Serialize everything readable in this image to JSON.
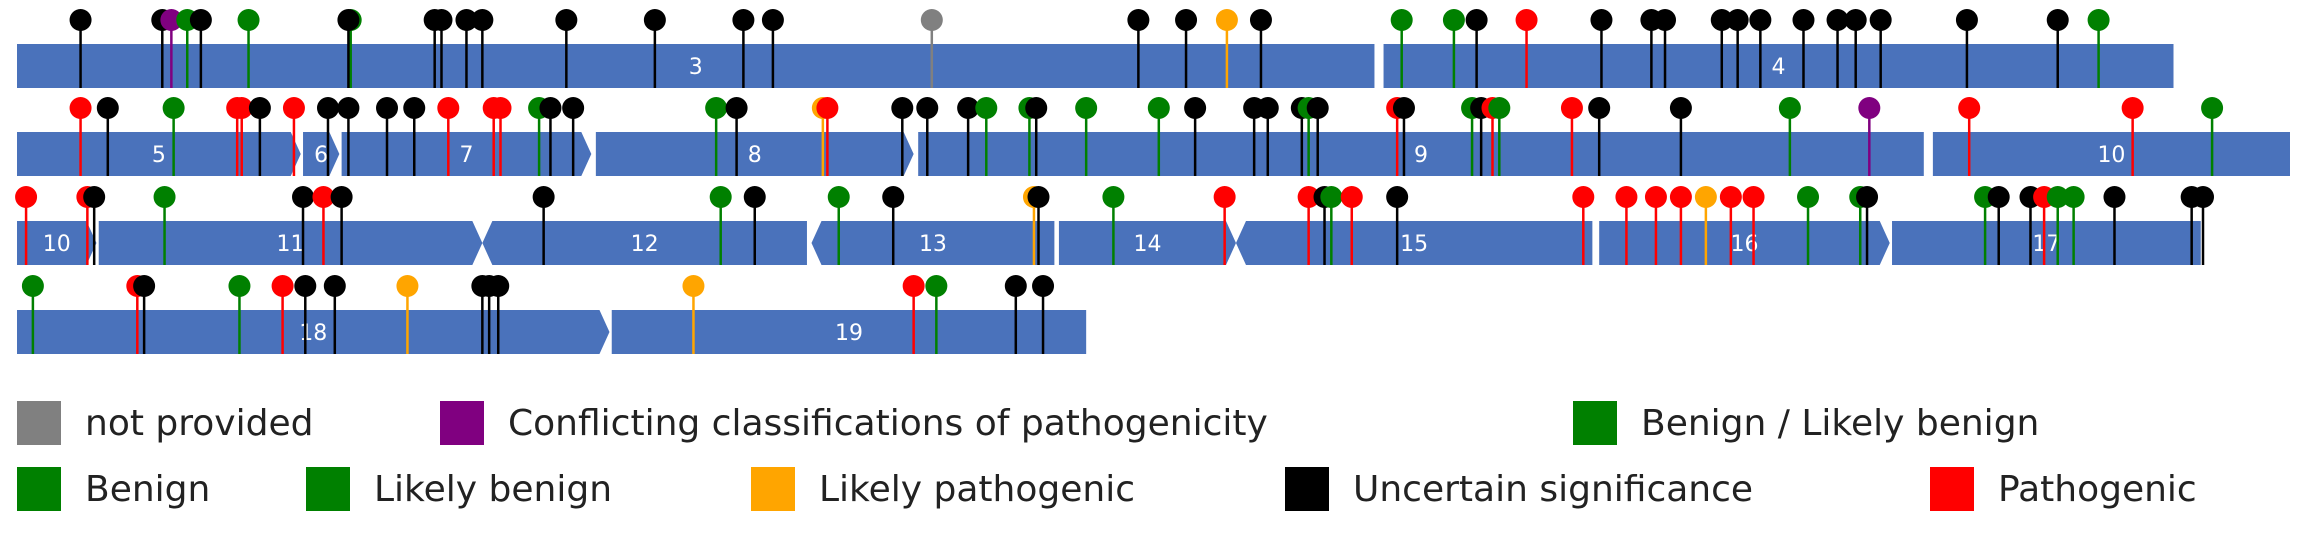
{
  "colors": {
    "track": "#4a72bb",
    "not_provided": "#808080",
    "conflicting": "#800080",
    "benign": "#008000",
    "likely_pathogenic": "#ffa500",
    "uncertain": "#000000",
    "pathogenic": "#ff0000"
  },
  "exons": [
    {
      "label": "3",
      "row": 0,
      "start": 0.0,
      "end": 0.598,
      "arrow_left": false,
      "arrow_right": false
    },
    {
      "label": "4",
      "row": 0,
      "start": 0.602,
      "end": 0.95,
      "arrow_left": false,
      "arrow_right": false
    },
    {
      "label": "5",
      "row": 1,
      "start": 0.0,
      "end": 0.125,
      "arrow_left": false,
      "arrow_right": true
    },
    {
      "label": "6",
      "row": 1,
      "start": 0.126,
      "end": 0.142,
      "arrow_left": false,
      "arrow_right": true
    },
    {
      "label": "7",
      "row": 1,
      "start": 0.143,
      "end": 0.253,
      "arrow_left": false,
      "arrow_right": true
    },
    {
      "label": "8",
      "row": 1,
      "start": 0.255,
      "end": 0.395,
      "arrow_left": false,
      "arrow_right": true
    },
    {
      "label": "9",
      "row": 1,
      "start": 0.397,
      "end": 0.84,
      "arrow_left": false,
      "arrow_right": false
    },
    {
      "label": "10",
      "row": 1,
      "start": 0.844,
      "end": 1.005,
      "arrow_left": false,
      "arrow_right": false
    },
    {
      "label": "10",
      "row": 2,
      "start": 0.0,
      "end": 0.035,
      "arrow_left": false,
      "arrow_right": true
    },
    {
      "label": "11",
      "row": 2,
      "start": 0.036,
      "end": 0.205,
      "arrow_left": false,
      "arrow_right": true
    },
    {
      "label": "12",
      "row": 2,
      "start": 0.205,
      "end": 0.348,
      "arrow_left": true,
      "arrow_right": false
    },
    {
      "label": "13",
      "row": 2,
      "start": 0.35,
      "end": 0.457,
      "arrow_left": true,
      "arrow_right": false
    },
    {
      "label": "14",
      "row": 2,
      "start": 0.459,
      "end": 0.537,
      "arrow_left": false,
      "arrow_right": true
    },
    {
      "label": "15",
      "row": 2,
      "start": 0.537,
      "end": 0.694,
      "arrow_left": true,
      "arrow_right": false
    },
    {
      "label": "16",
      "row": 2,
      "start": 0.697,
      "end": 0.825,
      "arrow_left": false,
      "arrow_right": true
    },
    {
      "label": "17",
      "row": 2,
      "start": 0.826,
      "end": 0.962,
      "arrow_left": false,
      "arrow_right": false
    },
    {
      "label": "18",
      "row": 3,
      "start": 0.0,
      "end": 0.261,
      "arrow_left": false,
      "arrow_right": true
    },
    {
      "label": "19",
      "row": 3,
      "start": 0.262,
      "end": 0.471,
      "arrow_left": false,
      "arrow_right": false
    }
  ],
  "variants": [
    {
      "row": 0,
      "pos": 0.028,
      "cls": "uncertain"
    },
    {
      "row": 0,
      "pos": 0.064,
      "cls": "uncertain"
    },
    {
      "row": 0,
      "pos": 0.068,
      "cls": "conflicting"
    },
    {
      "row": 0,
      "pos": 0.075,
      "cls": "benign"
    },
    {
      "row": 0,
      "pos": 0.081,
      "cls": "uncertain"
    },
    {
      "row": 0,
      "pos": 0.102,
      "cls": "benign"
    },
    {
      "row": 0,
      "pos": 0.147,
      "cls": "benign"
    },
    {
      "row": 0,
      "pos": 0.146,
      "cls": "uncertain"
    },
    {
      "row": 0,
      "pos": 0.184,
      "cls": "uncertain"
    },
    {
      "row": 0,
      "pos": 0.187,
      "cls": "uncertain"
    },
    {
      "row": 0,
      "pos": 0.198,
      "cls": "uncertain"
    },
    {
      "row": 0,
      "pos": 0.205,
      "cls": "uncertain"
    },
    {
      "row": 0,
      "pos": 0.242,
      "cls": "uncertain"
    },
    {
      "row": 0,
      "pos": 0.281,
      "cls": "uncertain"
    },
    {
      "row": 0,
      "pos": 0.32,
      "cls": "uncertain"
    },
    {
      "row": 0,
      "pos": 0.333,
      "cls": "uncertain"
    },
    {
      "row": 0,
      "pos": 0.403,
      "cls": "not_provided"
    },
    {
      "row": 0,
      "pos": 0.494,
      "cls": "uncertain"
    },
    {
      "row": 0,
      "pos": 0.515,
      "cls": "uncertain"
    },
    {
      "row": 0,
      "pos": 0.533,
      "cls": "likely_pathogenic"
    },
    {
      "row": 0,
      "pos": 0.548,
      "cls": "uncertain"
    },
    {
      "row": 0,
      "pos": 0.61,
      "cls": "benign"
    },
    {
      "row": 0,
      "pos": 0.633,
      "cls": "benign"
    },
    {
      "row": 0,
      "pos": 0.643,
      "cls": "uncertain"
    },
    {
      "row": 0,
      "pos": 0.665,
      "cls": "pathogenic"
    },
    {
      "row": 0,
      "pos": 0.698,
      "cls": "uncertain"
    },
    {
      "row": 0,
      "pos": 0.72,
      "cls": "uncertain"
    },
    {
      "row": 0,
      "pos": 0.726,
      "cls": "uncertain"
    },
    {
      "row": 0,
      "pos": 0.751,
      "cls": "uncertain"
    },
    {
      "row": 0,
      "pos": 0.758,
      "cls": "uncertain"
    },
    {
      "row": 0,
      "pos": 0.768,
      "cls": "uncertain"
    },
    {
      "row": 0,
      "pos": 0.787,
      "cls": "uncertain"
    },
    {
      "row": 0,
      "pos": 0.802,
      "cls": "uncertain"
    },
    {
      "row": 0,
      "pos": 0.81,
      "cls": "uncertain"
    },
    {
      "row": 0,
      "pos": 0.821,
      "cls": "uncertain"
    },
    {
      "row": 0,
      "pos": 0.859,
      "cls": "uncertain"
    },
    {
      "row": 0,
      "pos": 0.899,
      "cls": "uncertain"
    },
    {
      "row": 0,
      "pos": 0.917,
      "cls": "benign"
    },
    {
      "row": 1,
      "pos": 0.028,
      "cls": "pathogenic"
    },
    {
      "row": 1,
      "pos": 0.04,
      "cls": "uncertain"
    },
    {
      "row": 1,
      "pos": 0.069,
      "cls": "benign"
    },
    {
      "row": 1,
      "pos": 0.097,
      "cls": "pathogenic"
    },
    {
      "row": 1,
      "pos": 0.099,
      "cls": "pathogenic"
    },
    {
      "row": 1,
      "pos": 0.107,
      "cls": "uncertain"
    },
    {
      "row": 1,
      "pos": 0.122,
      "cls": "pathogenic"
    },
    {
      "row": 1,
      "pos": 0.137,
      "cls": "uncertain"
    },
    {
      "row": 1,
      "pos": 0.146,
      "cls": "uncertain"
    },
    {
      "row": 1,
      "pos": 0.163,
      "cls": "uncertain"
    },
    {
      "row": 1,
      "pos": 0.175,
      "cls": "uncertain"
    },
    {
      "row": 1,
      "pos": 0.19,
      "cls": "pathogenic"
    },
    {
      "row": 1,
      "pos": 0.21,
      "cls": "pathogenic"
    },
    {
      "row": 1,
      "pos": 0.213,
      "cls": "pathogenic"
    },
    {
      "row": 1,
      "pos": 0.23,
      "cls": "benign"
    },
    {
      "row": 1,
      "pos": 0.235,
      "cls": "uncertain"
    },
    {
      "row": 1,
      "pos": 0.245,
      "cls": "uncertain"
    },
    {
      "row": 1,
      "pos": 0.308,
      "cls": "benign"
    },
    {
      "row": 1,
      "pos": 0.317,
      "cls": "uncertain"
    },
    {
      "row": 1,
      "pos": 0.355,
      "cls": "likely_pathogenic"
    },
    {
      "row": 1,
      "pos": 0.357,
      "cls": "pathogenic"
    },
    {
      "row": 1,
      "pos": 0.39,
      "cls": "uncertain"
    },
    {
      "row": 1,
      "pos": 0.401,
      "cls": "uncertain"
    },
    {
      "row": 1,
      "pos": 0.419,
      "cls": "uncertain"
    },
    {
      "row": 1,
      "pos": 0.427,
      "cls": "benign"
    },
    {
      "row": 1,
      "pos": 0.446,
      "cls": "benign"
    },
    {
      "row": 1,
      "pos": 0.449,
      "cls": "uncertain"
    },
    {
      "row": 1,
      "pos": 0.471,
      "cls": "benign"
    },
    {
      "row": 1,
      "pos": 0.503,
      "cls": "benign"
    },
    {
      "row": 1,
      "pos": 0.519,
      "cls": "uncertain"
    },
    {
      "row": 1,
      "pos": 0.545,
      "cls": "uncertain"
    },
    {
      "row": 1,
      "pos": 0.551,
      "cls": "uncertain"
    },
    {
      "row": 1,
      "pos": 0.566,
      "cls": "uncertain"
    },
    {
      "row": 1,
      "pos": 0.569,
      "cls": "benign"
    },
    {
      "row": 1,
      "pos": 0.573,
      "cls": "uncertain"
    },
    {
      "row": 1,
      "pos": 0.608,
      "cls": "pathogenic"
    },
    {
      "row": 1,
      "pos": 0.611,
      "cls": "uncertain"
    },
    {
      "row": 1,
      "pos": 0.641,
      "cls": "benign"
    },
    {
      "row": 1,
      "pos": 0.645,
      "cls": "uncertain"
    },
    {
      "row": 1,
      "pos": 0.65,
      "cls": "pathogenic"
    },
    {
      "row": 1,
      "pos": 0.653,
      "cls": "benign"
    },
    {
      "row": 1,
      "pos": 0.685,
      "cls": "pathogenic"
    },
    {
      "row": 1,
      "pos": 0.697,
      "cls": "uncertain"
    },
    {
      "row": 1,
      "pos": 0.733,
      "cls": "uncertain"
    },
    {
      "row": 1,
      "pos": 0.781,
      "cls": "benign"
    },
    {
      "row": 1,
      "pos": 0.816,
      "cls": "conflicting"
    },
    {
      "row": 1,
      "pos": 0.86,
      "cls": "pathogenic"
    },
    {
      "row": 1,
      "pos": 0.932,
      "cls": "pathogenic"
    },
    {
      "row": 1,
      "pos": 0.967,
      "cls": "benign"
    },
    {
      "row": 2,
      "pos": 0.004,
      "cls": "pathogenic"
    },
    {
      "row": 2,
      "pos": 0.031,
      "cls": "pathogenic"
    },
    {
      "row": 2,
      "pos": 0.034,
      "cls": "uncertain"
    },
    {
      "row": 2,
      "pos": 0.065,
      "cls": "benign"
    },
    {
      "row": 2,
      "pos": 0.126,
      "cls": "uncertain"
    },
    {
      "row": 2,
      "pos": 0.135,
      "cls": "pathogenic"
    },
    {
      "row": 2,
      "pos": 0.143,
      "cls": "uncertain"
    },
    {
      "row": 2,
      "pos": 0.232,
      "cls": "uncertain"
    },
    {
      "row": 2,
      "pos": 0.31,
      "cls": "benign"
    },
    {
      "row": 2,
      "pos": 0.325,
      "cls": "uncertain"
    },
    {
      "row": 2,
      "pos": 0.362,
      "cls": "benign"
    },
    {
      "row": 2,
      "pos": 0.386,
      "cls": "uncertain"
    },
    {
      "row": 2,
      "pos": 0.448,
      "cls": "likely_pathogenic"
    },
    {
      "row": 2,
      "pos": 0.45,
      "cls": "uncertain"
    },
    {
      "row": 2,
      "pos": 0.483,
      "cls": "benign"
    },
    {
      "row": 2,
      "pos": 0.532,
      "cls": "pathogenic"
    },
    {
      "row": 2,
      "pos": 0.569,
      "cls": "pathogenic"
    },
    {
      "row": 2,
      "pos": 0.576,
      "cls": "uncertain"
    },
    {
      "row": 2,
      "pos": 0.579,
      "cls": "benign"
    },
    {
      "row": 2,
      "pos": 0.588,
      "cls": "pathogenic"
    },
    {
      "row": 2,
      "pos": 0.608,
      "cls": "uncertain"
    },
    {
      "row": 2,
      "pos": 0.69,
      "cls": "pathogenic"
    },
    {
      "row": 2,
      "pos": 0.709,
      "cls": "pathogenic"
    },
    {
      "row": 2,
      "pos": 0.722,
      "cls": "pathogenic"
    },
    {
      "row": 2,
      "pos": 0.733,
      "cls": "pathogenic"
    },
    {
      "row": 2,
      "pos": 0.744,
      "cls": "likely_pathogenic"
    },
    {
      "row": 2,
      "pos": 0.755,
      "cls": "pathogenic"
    },
    {
      "row": 2,
      "pos": 0.765,
      "cls": "pathogenic"
    },
    {
      "row": 2,
      "pos": 0.789,
      "cls": "benign"
    },
    {
      "row": 2,
      "pos": 0.812,
      "cls": "benign"
    },
    {
      "row": 2,
      "pos": 0.815,
      "cls": "uncertain"
    },
    {
      "row": 2,
      "pos": 0.867,
      "cls": "benign"
    },
    {
      "row": 2,
      "pos": 0.873,
      "cls": "uncertain"
    },
    {
      "row": 2,
      "pos": 0.887,
      "cls": "uncertain"
    },
    {
      "row": 2,
      "pos": 0.893,
      "cls": "pathogenic"
    },
    {
      "row": 2,
      "pos": 0.899,
      "cls": "benign"
    },
    {
      "row": 2,
      "pos": 0.906,
      "cls": "benign"
    },
    {
      "row": 2,
      "pos": 0.924,
      "cls": "uncertain"
    },
    {
      "row": 2,
      "pos": 0.958,
      "cls": "uncertain"
    },
    {
      "row": 2,
      "pos": 0.963,
      "cls": "uncertain"
    },
    {
      "row": 3,
      "pos": 0.007,
      "cls": "benign"
    },
    {
      "row": 3,
      "pos": 0.053,
      "cls": "pathogenic"
    },
    {
      "row": 3,
      "pos": 0.056,
      "cls": "uncertain"
    },
    {
      "row": 3,
      "pos": 0.098,
      "cls": "benign"
    },
    {
      "row": 3,
      "pos": 0.117,
      "cls": "pathogenic"
    },
    {
      "row": 3,
      "pos": 0.127,
      "cls": "uncertain"
    },
    {
      "row": 3,
      "pos": 0.14,
      "cls": "uncertain"
    },
    {
      "row": 3,
      "pos": 0.172,
      "cls": "likely_pathogenic"
    },
    {
      "row": 3,
      "pos": 0.205,
      "cls": "uncertain"
    },
    {
      "row": 3,
      "pos": 0.208,
      "cls": "uncertain"
    },
    {
      "row": 3,
      "pos": 0.212,
      "cls": "uncertain"
    },
    {
      "row": 3,
      "pos": 0.298,
      "cls": "likely_pathogenic"
    },
    {
      "row": 3,
      "pos": 0.395,
      "cls": "pathogenic"
    },
    {
      "row": 3,
      "pos": 0.405,
      "cls": "benign"
    },
    {
      "row": 3,
      "pos": 0.44,
      "cls": "uncertain"
    },
    {
      "row": 3,
      "pos": 0.452,
      "cls": "uncertain"
    }
  ],
  "legend": [
    {
      "label": "not provided",
      "color": "#808080",
      "line": 0
    },
    {
      "label": "Conflicting classifications of pathogenicity",
      "color": "#800080",
      "line": 0
    },
    {
      "label": "Benign / Likely benign",
      "color": "#008000",
      "line": 0
    },
    {
      "label": "Benign",
      "color": "#008000",
      "line": 1
    },
    {
      "label": "Likely benign",
      "color": "#008000",
      "line": 1
    },
    {
      "label": "Likely pathogenic",
      "color": "#ffa500",
      "line": 1
    },
    {
      "label": "Uncertain significance",
      "color": "#000000",
      "line": 1
    },
    {
      "label": "Pathogenic",
      "color": "#ff0000",
      "line": 1
    }
  ]
}
